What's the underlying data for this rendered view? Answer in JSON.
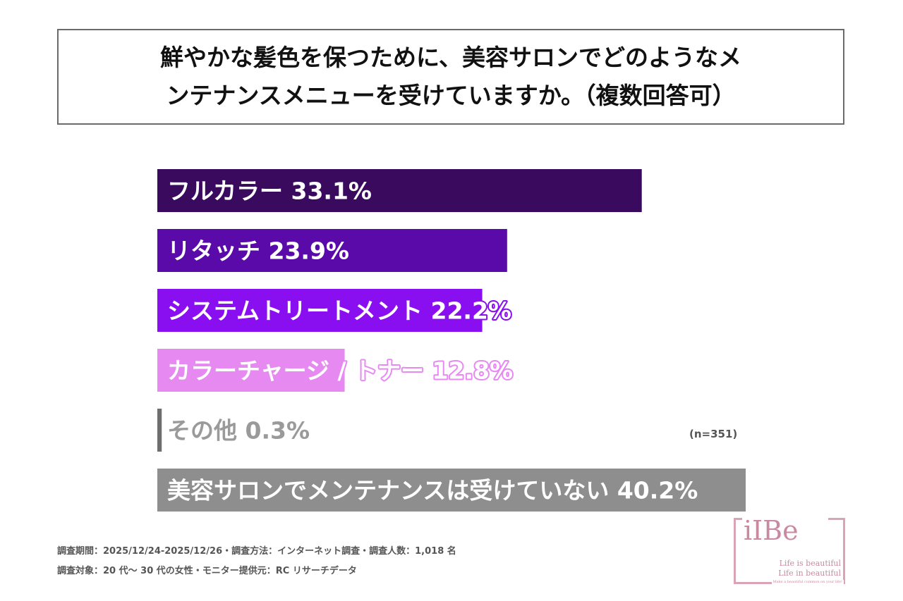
{
  "title": {
    "line1": "鮮やかな髪色を保つために、美容サロンでどのようなメ",
    "line2": "ンテナンスメニューを受けていますか。（複数回答可）"
  },
  "sample_size": "(n=351)",
  "chart_data": {
    "type": "bar",
    "orientation": "horizontal",
    "title": "鮮やかな髪色を保つために、美容サロンでどのようなメンテナンスメニューを受けていますか。（複数回答可）",
    "categories": [
      "フルカラー",
      "リタッチ",
      "システムトリートメント",
      "カラーチャージ / トナー",
      "その他",
      "美容サロンでメンテナンスは受けていない"
    ],
    "values": [
      33.1,
      23.9,
      22.2,
      12.8,
      0.3,
      40.2
    ],
    "value_labels": [
      "33.1%",
      "23.9%",
      "22.2%",
      "12.8%",
      "0.3%",
      "40.2%"
    ],
    "label_text": [
      "フルカラー 33.1%",
      "リタッチ 23.9%",
      "システムトリートメント 22.2%",
      "カラーチャージ / トナー 12.8%",
      "その他 0.3%",
      "美容サロンでメンテナンスは受けていない 40.2%"
    ],
    "colors": [
      "#3a0a5e",
      "#5a0aa8",
      "#8a0ff0",
      "#e68af2",
      "#6e6e6e",
      "#8e8e8e"
    ],
    "label_colors": [
      "#ffffff",
      "#ffffff",
      "#ffffff",
      "#ffffff",
      "#9a9a9a",
      "#ffffff"
    ],
    "xlim": [
      0,
      40.2
    ],
    "grid": false,
    "legend": "none"
  },
  "notes": {
    "line1": "調査期間：2025/12/24-2025/12/26・調査方法：インターネット調査・調査人数：1,018 名",
    "line2": "調査対象：20 代〜 30 代の女性・モニター提供元：RC リサーチデータ"
  },
  "logo": {
    "text": "iIBe",
    "tagline1": "Life is beautiful",
    "tagline2": "Life in beautiful",
    "motto": "Make a beautiful common on your life!"
  }
}
